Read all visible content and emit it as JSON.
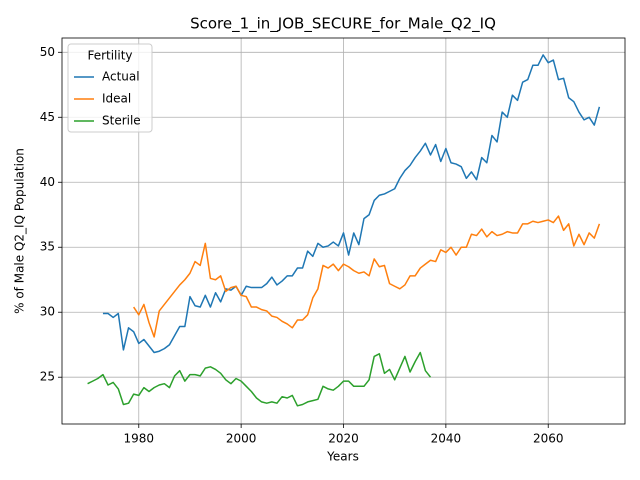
{
  "chart_data": {
    "type": "line",
    "title": "Score_1_in_JOB_SECURE_for_Male_Q2_IQ",
    "xlabel": "Years",
    "ylabel": "% of Male Q2_IQ Population",
    "x": [
      1970,
      1971,
      1972,
      1973,
      1974,
      1975,
      1976,
      1977,
      1978,
      1979,
      1980,
      1981,
      1982,
      1983,
      1984,
      1985,
      1986,
      1987,
      1988,
      1989,
      1990,
      1991,
      1992,
      1993,
      1994,
      1995,
      1996,
      1997,
      1998,
      1999,
      2000,
      2001,
      2002,
      2003,
      2004,
      2005,
      2006,
      2007,
      2008,
      2009,
      2010,
      2011,
      2012,
      2013,
      2014,
      2015,
      2016,
      2017,
      2018,
      2019,
      2020,
      2021,
      2022,
      2023,
      2024,
      2025,
      2026,
      2027,
      2028,
      2029,
      2030,
      2031,
      2032,
      2033,
      2034,
      2035,
      2036,
      2037,
      2038,
      2039,
      2040,
      2041,
      2042,
      2043,
      2044,
      2045,
      2046,
      2047,
      2048,
      2049,
      2050,
      2051,
      2052,
      2053,
      2054,
      2055,
      2056,
      2057,
      2058,
      2059,
      2060,
      2061,
      2062,
      2063,
      2064,
      2065,
      2066,
      2067,
      2068,
      2069,
      2070
    ],
    "series": [
      {
        "name": "Actual",
        "color": "#1f77b4",
        "values": [
          null,
          null,
          null,
          29.9,
          29.9,
          29.6,
          29.9,
          27.1,
          28.8,
          28.5,
          27.6,
          27.9,
          27.4,
          26.9,
          27.0,
          27.2,
          27.5,
          28.2,
          28.9,
          28.9,
          31.2,
          30.5,
          30.4,
          31.3,
          30.4,
          31.5,
          30.8,
          31.8,
          31.7,
          32.0,
          31.3,
          32.0,
          31.9,
          31.9,
          31.9,
          32.2,
          32.7,
          32.1,
          32.4,
          32.8,
          32.8,
          33.4,
          33.4,
          34.7,
          34.3,
          35.3,
          35.0,
          35.1,
          35.4,
          35.1,
          36.1,
          34.4,
          36.1,
          35.2,
          37.2,
          37.5,
          38.6,
          39.0,
          39.1,
          39.3,
          39.5,
          40.3,
          40.9,
          41.3,
          41.9,
          42.4,
          43.0,
          42.1,
          42.9,
          41.6,
          42.6,
          41.5,
          41.4,
          41.2,
          40.3,
          40.8,
          40.2,
          41.9,
          41.5,
          43.6,
          43.1,
          45.4,
          45.0,
          46.7,
          46.3,
          47.7,
          47.9,
          49.0,
          49.0,
          49.8,
          49.2,
          49.4,
          47.9,
          48.0,
          46.5,
          46.2,
          45.4,
          44.8,
          45.0,
          44.4,
          45.8
        ]
      },
      {
        "name": "Ideal",
        "color": "#ff7f0e",
        "values": [
          null,
          null,
          null,
          null,
          null,
          null,
          null,
          null,
          null,
          30.4,
          29.8,
          30.6,
          29.2,
          28.1,
          30.1,
          30.6,
          31.1,
          31.6,
          32.1,
          32.5,
          33.0,
          33.9,
          33.6,
          35.3,
          32.6,
          32.5,
          32.8,
          31.6,
          31.9,
          32.0,
          31.3,
          31.2,
          30.4,
          30.4,
          30.2,
          30.1,
          29.7,
          29.6,
          29.3,
          29.1,
          28.8,
          29.4,
          29.4,
          29.8,
          31.1,
          31.8,
          33.6,
          33.4,
          33.7,
          33.2,
          33.7,
          33.5,
          33.2,
          33.0,
          33.1,
          32.8,
          34.1,
          33.5,
          33.6,
          32.2,
          32.0,
          31.8,
          32.1,
          32.8,
          32.8,
          33.4,
          33.7,
          34.0,
          33.9,
          34.8,
          34.6,
          35.0,
          34.4,
          35.0,
          35.0,
          36.0,
          35.9,
          36.4,
          35.8,
          36.2,
          35.9,
          36.0,
          36.2,
          36.1,
          36.1,
          36.8,
          36.8,
          37.0,
          36.9,
          37.0,
          37.1,
          36.9,
          37.4,
          36.3,
          36.8,
          35.1,
          36.0,
          35.2,
          36.1,
          35.7,
          36.8
        ]
      },
      {
        "name": "Sterile",
        "color": "#2ca02c",
        "values": [
          24.5,
          24.7,
          24.9,
          25.2,
          24.4,
          24.6,
          24.1,
          22.9,
          23.0,
          23.7,
          23.6,
          24.2,
          23.9,
          24.2,
          24.4,
          24.5,
          24.2,
          25.1,
          25.5,
          24.7,
          25.2,
          25.2,
          25.1,
          25.7,
          25.8,
          25.6,
          25.3,
          24.8,
          24.5,
          24.9,
          24.7,
          24.3,
          23.9,
          23.4,
          23.1,
          23.0,
          23.1,
          23.0,
          23.5,
          23.4,
          23.6,
          22.8,
          22.9,
          23.1,
          23.2,
          23.3,
          24.3,
          24.1,
          24.0,
          24.3,
          24.7,
          24.7,
          24.3,
          24.3,
          24.3,
          24.8,
          26.6,
          26.8,
          25.3,
          25.6,
          24.8,
          25.7,
          26.6,
          25.4,
          26.2,
          26.9,
          25.5,
          25.0,
          null,
          null,
          null,
          null,
          null,
          null,
          null,
          null,
          null,
          null,
          null,
          null,
          null,
          null,
          null,
          null,
          null,
          null,
          null,
          null,
          null,
          null,
          null,
          null,
          null,
          null,
          null,
          null,
          null,
          null,
          null,
          null,
          null
        ]
      }
    ],
    "xlim": [
      1965,
      2075
    ],
    "ylim": [
      21.4,
      51.1
    ],
    "xticks": [
      1980,
      2000,
      2020,
      2040,
      2060
    ],
    "yticks": [
      25,
      30,
      35,
      40,
      45,
      50
    ],
    "grid": true,
    "legend": {
      "title": "Fertility",
      "loc": "upper left"
    }
  }
}
